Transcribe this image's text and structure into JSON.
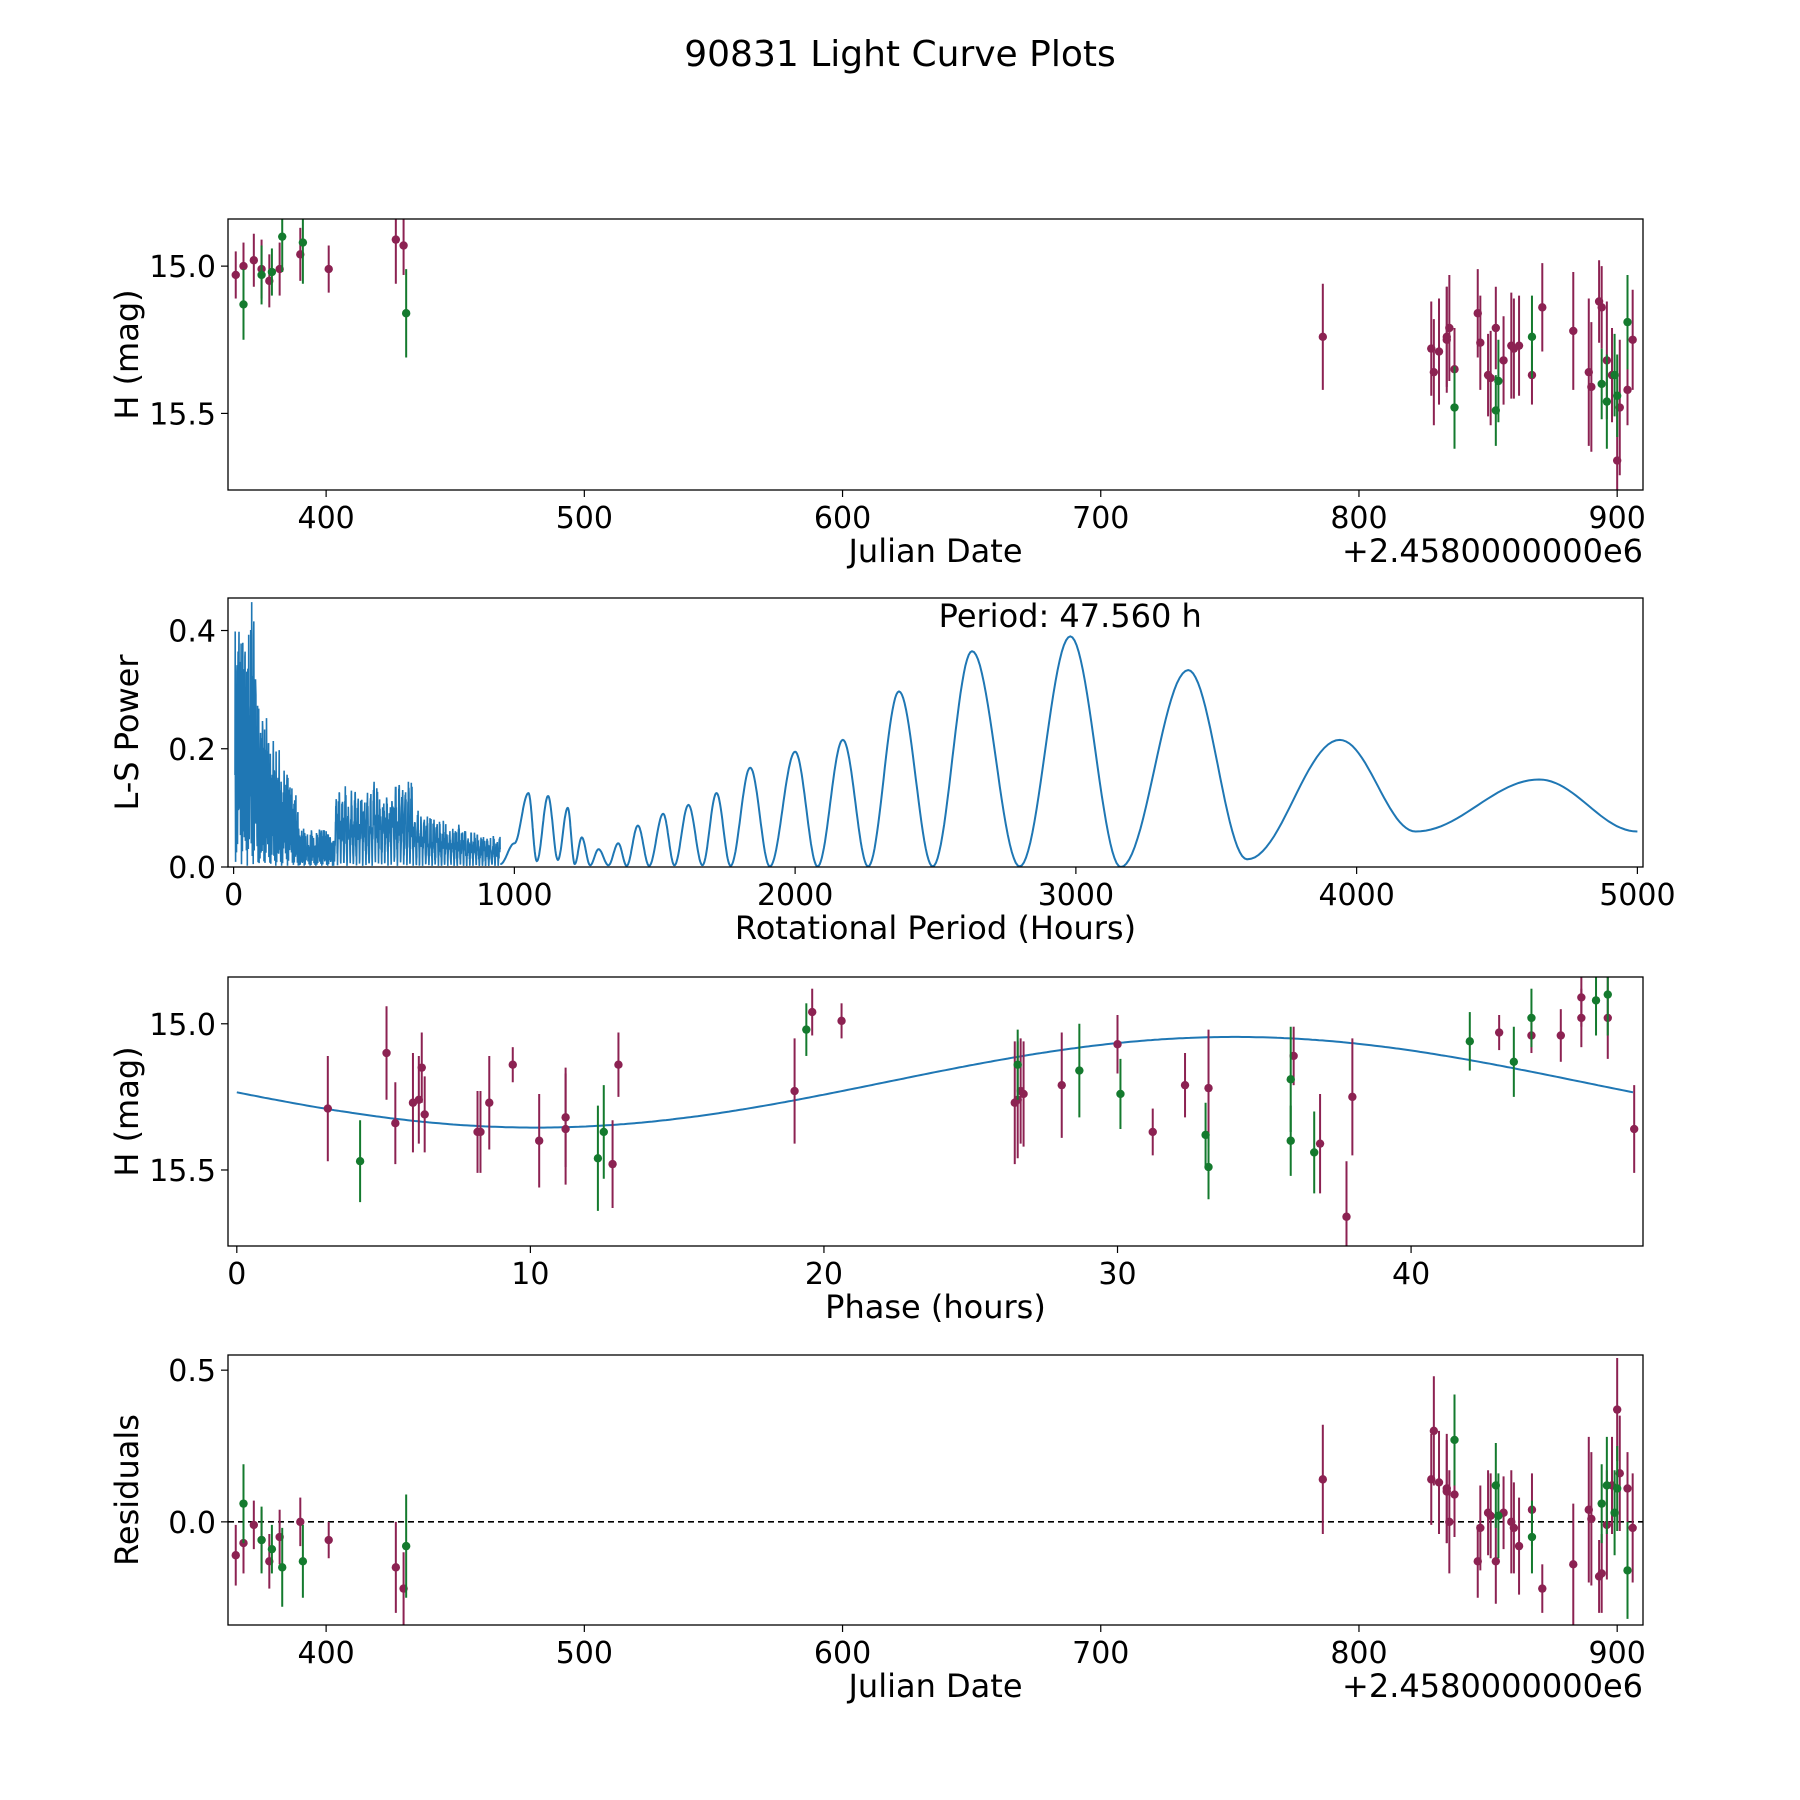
{
  "figure_title": "90831 Light Curve Plots",
  "colors": {
    "r_band": "#8c2252",
    "g_band": "#147a2e",
    "curve": "#1f77b4",
    "zero_line": "#000000"
  },
  "chart_data": [
    {
      "id": "raw",
      "type": "scatter",
      "xlabel": "Julian Date",
      "ylabel": "H (mag)",
      "x_offset_label": "+2.4580000000e6",
      "xlim": [
        362,
        910
      ],
      "ylim": [
        15.76,
        14.84
      ],
      "xticks": [
        400,
        500,
        600,
        700,
        800,
        900
      ],
      "yticks": [
        15.0,
        15.5
      ],
      "ytick_labels": [
        "15.0",
        "15.5"
      ],
      "y_inverted": true,
      "series": [
        {
          "name": "r",
          "points": [
            [
              365,
              15.03,
              0.08
            ],
            [
              368,
              15.0,
              0.08
            ],
            [
              372,
              14.98,
              0.09
            ],
            [
              375,
              15.01,
              0.1
            ],
            [
              378,
              15.05,
              0.09
            ],
            [
              382,
              15.01,
              0.09
            ],
            [
              390,
              14.96,
              0.09
            ],
            [
              401,
              15.01,
              0.08
            ],
            [
              427,
              14.91,
              0.15
            ],
            [
              430,
              14.93,
              0.1
            ],
            [
              786,
              15.24,
              0.18
            ],
            [
              828,
              15.28,
              0.16
            ],
            [
              829,
              15.36,
              0.18
            ],
            [
              831,
              15.29,
              0.18
            ],
            [
              834,
              15.25,
              0.18
            ],
            [
              834,
              15.24,
              0.17
            ],
            [
              835,
              15.21,
              0.18
            ],
            [
              837,
              15.35,
              0.14
            ],
            [
              846,
              15.16,
              0.15
            ],
            [
              847,
              15.26,
              0.16
            ],
            [
              850,
              15.37,
              0.14
            ],
            [
              851,
              15.38,
              0.16
            ],
            [
              853,
              15.21,
              0.14
            ],
            [
              856,
              15.32,
              0.15
            ],
            [
              859,
              15.27,
              0.18
            ],
            [
              860,
              15.28,
              0.17
            ],
            [
              862,
              15.27,
              0.17
            ],
            [
              867,
              15.37,
              0.1
            ],
            [
              871,
              15.14,
              0.15
            ],
            [
              883,
              15.22,
              0.2
            ],
            [
              889,
              15.36,
              0.25
            ],
            [
              890,
              15.41,
              0.22
            ],
            [
              893,
              15.12,
              0.14
            ],
            [
              894,
              15.14,
              0.14
            ],
            [
              896,
              15.32,
              0.2
            ],
            [
              898,
              15.37,
              0.16
            ],
            [
              900,
              15.66,
              0.23
            ],
            [
              901,
              15.48,
              0.23
            ],
            [
              904,
              15.42,
              0.12
            ],
            [
              906,
              15.25,
              0.17
            ]
          ]
        },
        {
          "name": "g",
          "points": [
            [
              368,
              15.13,
              0.12
            ],
            [
              375,
              15.03,
              0.1
            ],
            [
              379,
              15.02,
              0.08
            ],
            [
              383,
              14.9,
              0.12
            ],
            [
              391,
              14.92,
              0.14
            ],
            [
              431,
              15.16,
              0.15
            ],
            [
              837,
              15.48,
              0.14
            ],
            [
              853,
              15.49,
              0.12
            ],
            [
              854,
              15.39,
              0.14
            ],
            [
              867,
              15.24,
              0.14
            ],
            [
              894,
              15.4,
              0.12
            ],
            [
              896,
              15.46,
              0.16
            ],
            [
              899,
              15.37,
              0.14
            ],
            [
              900,
              15.44,
              0.14
            ],
            [
              904,
              15.19,
              0.16
            ]
          ]
        }
      ]
    },
    {
      "id": "periodogram",
      "type": "line",
      "xlabel": "Rotational Period (Hours)",
      "ylabel": "L-S Power",
      "annotation": "Period: 47.560 h",
      "xlim": [
        -20,
        5020
      ],
      "ylim": [
        0,
        0.455
      ],
      "xticks": [
        0,
        1000,
        2000,
        3000,
        4000,
        5000
      ],
      "yticks": [
        0.0,
        0.2,
        0.4
      ],
      "ytick_labels": [
        "0.0",
        "0.2",
        "0.4"
      ],
      "peaks": [
        [
          1000,
          0.04
        ],
        [
          1050,
          0.125
        ],
        [
          1120,
          0.12
        ],
        [
          1190,
          0.1
        ],
        [
          1240,
          0.05
        ],
        [
          1300,
          0.03
        ],
        [
          1370,
          0.04
        ],
        [
          1440,
          0.07
        ],
        [
          1530,
          0.09
        ],
        [
          1620,
          0.105
        ],
        [
          1720,
          0.125
        ],
        [
          1840,
          0.168
        ],
        [
          2000,
          0.195
        ],
        [
          2170,
          0.215
        ],
        [
          2370,
          0.297
        ],
        [
          2630,
          0.365
        ],
        [
          2980,
          0.39
        ],
        [
          3400,
          0.333
        ],
        [
          3940,
          0.215
        ],
        [
          4650,
          0.148
        ]
      ],
      "troughs": [
        [
          1080,
          0.01
        ],
        [
          1155,
          0.012
        ],
        [
          1215,
          0.005
        ],
        [
          1270,
          0.003
        ],
        [
          1335,
          0.003
        ],
        [
          1400,
          0.002
        ],
        [
          1480,
          0.002
        ],
        [
          1570,
          0.003
        ],
        [
          1670,
          0.003
        ],
        [
          1770,
          0.002
        ],
        [
          1910,
          0.001
        ],
        [
          2080,
          0.001
        ],
        [
          2260,
          0.001
        ],
        [
          2490,
          0.001
        ],
        [
          2800,
          0.001
        ],
        [
          3160,
          0.0
        ],
        [
          3610,
          0.013
        ],
        [
          4210,
          0.06
        ]
      ],
      "curve_start": [
        950,
        0.005
      ],
      "curve_end": [
        5000,
        0.06
      ],
      "low_period_region": {
        "start": 5,
        "end": 950,
        "max_power": 0.455
      }
    },
    {
      "id": "phased",
      "type": "scatter",
      "xlabel": "Phase (hours)",
      "ylabel": "H (mag)",
      "xlim": [
        -0.3,
        47.9
      ],
      "ylim": [
        15.76,
        14.84
      ],
      "xticks": [
        0,
        10,
        20,
        30,
        40
      ],
      "yticks": [
        15.0,
        15.5
      ],
      "ytick_labels": [
        "15.0",
        "15.5"
      ],
      "y_inverted": true,
      "model": {
        "mean": 15.2,
        "amplitude": 0.155,
        "peak_phase": 10.2,
        "period": 47.56
      },
      "series": [
        {
          "name": "r",
          "points": [
            [
              3.1,
              15.29,
              0.18
            ],
            [
              5.1,
              15.1,
              0.16
            ],
            [
              5.4,
              15.34,
              0.14
            ],
            [
              6.0,
              15.27,
              0.17
            ],
            [
              6.2,
              15.26,
              0.15
            ],
            [
              6.3,
              15.15,
              0.12
            ],
            [
              6.4,
              15.31,
              0.13
            ],
            [
              8.2,
              15.37,
              0.14
            ],
            [
              8.3,
              15.37,
              0.14
            ],
            [
              8.6,
              15.27,
              0.16
            ],
            [
              9.4,
              15.14,
              0.06
            ],
            [
              10.3,
              15.4,
              0.16
            ],
            [
              11.2,
              15.32,
              0.17
            ],
            [
              11.2,
              15.36,
              0.19
            ],
            [
              12.8,
              15.48,
              0.15
            ],
            [
              13.0,
              15.14,
              0.11
            ],
            [
              19.0,
              15.23,
              0.18
            ],
            [
              19.6,
              14.96,
              0.08
            ],
            [
              20.6,
              14.99,
              0.06
            ],
            [
              26.5,
              15.27,
              0.21
            ],
            [
              26.6,
              15.26,
              0.2
            ],
            [
              26.7,
              15.23,
              0.18
            ],
            [
              26.8,
              15.24,
              0.18
            ],
            [
              28.1,
              15.21,
              0.18
            ],
            [
              30.0,
              15.07,
              0.1
            ],
            [
              31.2,
              15.37,
              0.08
            ],
            [
              32.3,
              15.21,
              0.11
            ],
            [
              33.1,
              15.22,
              0.2
            ],
            [
              36.0,
              15.11,
              0.1
            ],
            [
              36.9,
              15.41,
              0.17
            ],
            [
              37.8,
              15.66,
              0.19
            ],
            [
              38.0,
              15.25,
              0.2
            ],
            [
              43.0,
              15.03,
              0.06
            ],
            [
              44.1,
              15.04,
              0.06
            ],
            [
              45.1,
              15.04,
              0.09
            ],
            [
              45.8,
              14.91,
              0.1
            ],
            [
              45.8,
              14.98,
              0.1
            ],
            [
              46.7,
              14.98,
              0.14
            ],
            [
              47.6,
              15.36,
              0.15
            ]
          ]
        },
        {
          "name": "g",
          "points": [
            [
              4.2,
              15.47,
              0.14
            ],
            [
              12.3,
              15.46,
              0.18
            ],
            [
              12.5,
              15.37,
              0.16
            ],
            [
              19.4,
              15.02,
              0.09
            ],
            [
              26.6,
              15.14,
              0.12
            ],
            [
              28.7,
              15.16,
              0.16
            ],
            [
              30.1,
              15.24,
              0.12
            ],
            [
              33.0,
              15.38,
              0.11
            ],
            [
              33.1,
              15.49,
              0.11
            ],
            [
              35.9,
              15.4,
              0.12
            ],
            [
              35.9,
              15.19,
              0.18
            ],
            [
              36.7,
              15.44,
              0.14
            ],
            [
              42.0,
              15.06,
              0.1
            ],
            [
              43.5,
              15.13,
              0.12
            ],
            [
              44.1,
              14.98,
              0.1
            ],
            [
              46.3,
              14.92,
              0.12
            ],
            [
              46.7,
              14.9,
              0.14
            ]
          ]
        }
      ]
    },
    {
      "id": "residuals",
      "type": "scatter",
      "xlabel": "Julian Date",
      "ylabel": "Residuals",
      "x_offset_label": "+2.4580000000e6",
      "xlim": [
        362,
        910
      ],
      "ylim": [
        -0.34,
        0.55
      ],
      "xticks": [
        400,
        500,
        600,
        700,
        800,
        900
      ],
      "yticks": [
        0.0,
        0.5
      ],
      "ytick_labels": [
        "0.0",
        "0.5"
      ],
      "zero_line": 0.0,
      "series": [
        {
          "name": "r",
          "points": [
            [
              365,
              -0.11,
              0.1
            ],
            [
              368,
              -0.07,
              0.1
            ],
            [
              372,
              -0.01,
              0.08
            ],
            [
              375,
              -0.06,
              0.1
            ],
            [
              378,
              -0.13,
              0.09
            ],
            [
              382,
              -0.05,
              0.09
            ],
            [
              390,
              0.0,
              0.08
            ],
            [
              401,
              -0.06,
              0.06
            ],
            [
              427,
              -0.15,
              0.15
            ],
            [
              430,
              -0.22,
              0.12
            ],
            [
              786,
              0.14,
              0.18
            ],
            [
              828,
              0.14,
              0.15
            ],
            [
              829,
              0.3,
              0.18
            ],
            [
              831,
              0.13,
              0.17
            ],
            [
              834,
              0.11,
              0.18
            ],
            [
              834,
              0.1,
              0.17
            ],
            [
              835,
              0.0,
              0.17
            ],
            [
              837,
              0.09,
              0.14
            ],
            [
              846,
              -0.13,
              0.12
            ],
            [
              847,
              -0.02,
              0.14
            ],
            [
              850,
              0.03,
              0.14
            ],
            [
              851,
              0.02,
              0.14
            ],
            [
              853,
              -0.13,
              0.14
            ],
            [
              856,
              0.03,
              0.12
            ],
            [
              859,
              0.0,
              0.17
            ],
            [
              860,
              -0.02,
              0.15
            ],
            [
              862,
              -0.08,
              0.16
            ],
            [
              867,
              0.04,
              0.12
            ],
            [
              871,
              -0.22,
              0.08
            ],
            [
              883,
              -0.14,
              0.2
            ],
            [
              889,
              0.04,
              0.24
            ],
            [
              890,
              0.01,
              0.22
            ],
            [
              893,
              -0.18,
              0.12
            ],
            [
              894,
              -0.17,
              0.13
            ],
            [
              896,
              -0.01,
              0.18
            ],
            [
              898,
              0.12,
              0.16
            ],
            [
              900,
              0.37,
              0.17
            ],
            [
              901,
              0.16,
              0.19
            ],
            [
              904,
              0.11,
              0.12
            ],
            [
              906,
              -0.02,
              0.18
            ]
          ]
        },
        {
          "name": "g",
          "points": [
            [
              368,
              0.06,
              0.13
            ],
            [
              375,
              -0.06,
              0.11
            ],
            [
              379,
              -0.09,
              0.08
            ],
            [
              383,
              -0.15,
              0.13
            ],
            [
              391,
              -0.13,
              0.12
            ],
            [
              431,
              -0.08,
              0.17
            ],
            [
              837,
              0.27,
              0.15
            ],
            [
              853,
              0.12,
              0.14
            ],
            [
              854,
              0.02,
              0.14
            ],
            [
              867,
              -0.05,
              0.12
            ],
            [
              894,
              0.06,
              0.13
            ],
            [
              896,
              0.12,
              0.16
            ],
            [
              899,
              0.03,
              0.14
            ],
            [
              900,
              0.11,
              0.14
            ],
            [
              904,
              -0.16,
              0.16
            ]
          ]
        }
      ]
    }
  ]
}
